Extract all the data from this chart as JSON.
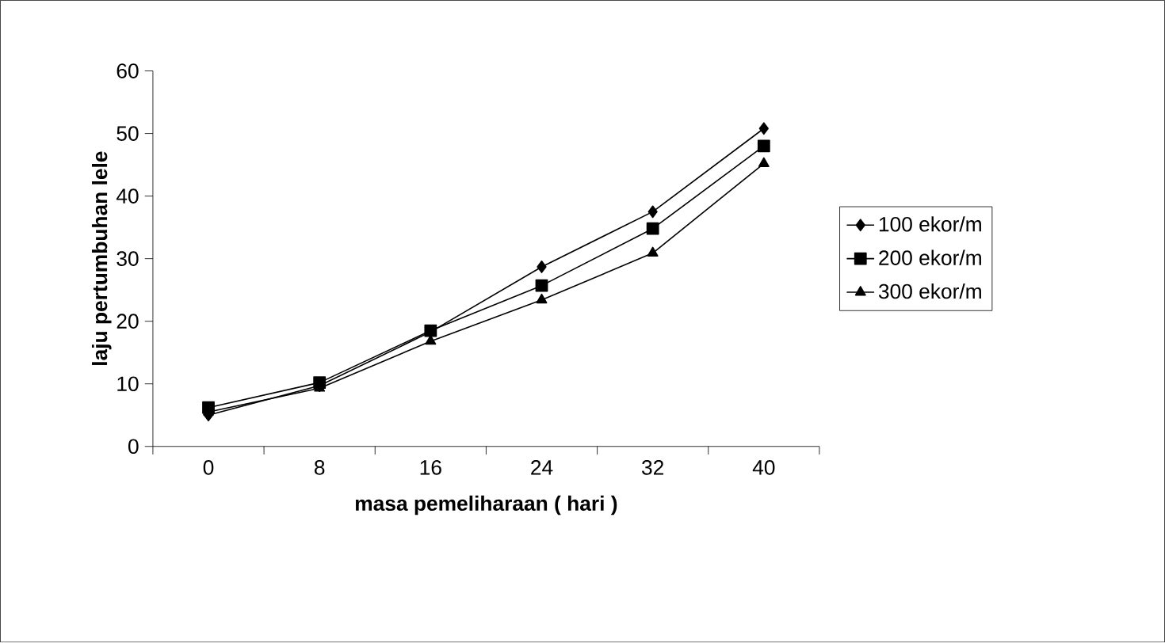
{
  "chart_data": {
    "type": "line",
    "xlabel": "masa pemeliharaan ( hari )",
    "ylabel": "laju pertumbuhan lele",
    "categories": [
      "0",
      "8",
      "16",
      "24",
      "32",
      "40"
    ],
    "series": [
      {
        "name": "100 ekor/m",
        "color": "#000000",
        "marker": "diamond",
        "values": [
          5.0,
          9.7,
          18.3,
          28.7,
          37.5,
          50.8
        ]
      },
      {
        "name": "200 ekor/m",
        "color": "#000000",
        "marker": "square",
        "values": [
          6.2,
          10.2,
          18.5,
          25.7,
          34.8,
          48.0
        ]
      },
      {
        "name": "300 ekor/m",
        "color": "#000000",
        "marker": "triangle",
        "values": [
          5.5,
          9.3,
          16.8,
          23.4,
          30.9,
          45.2
        ]
      }
    ],
    "ylim": [
      0,
      60
    ],
    "yticks": [
      0,
      10,
      20,
      30,
      40,
      50,
      60
    ],
    "grid": false,
    "legend": "right",
    "line_style": "solid"
  }
}
